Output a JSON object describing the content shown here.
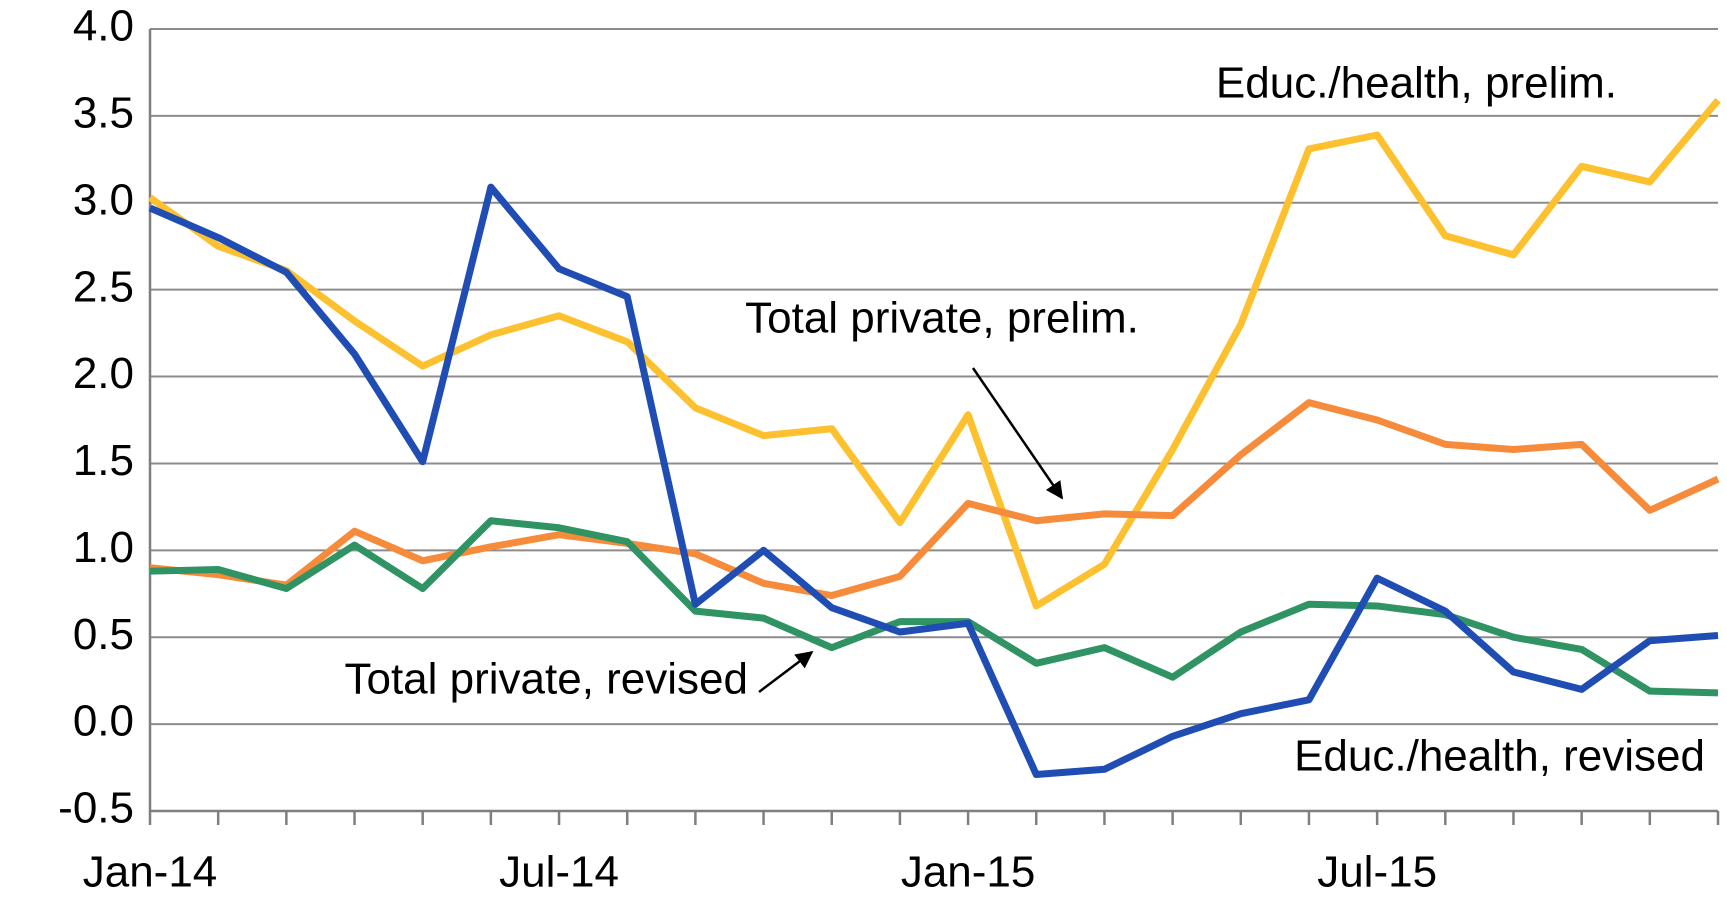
{
  "chart_data": {
    "type": "line",
    "categories": [
      "Jan-14",
      null,
      null,
      null,
      null,
      null,
      "Jul-14",
      null,
      null,
      null,
      null,
      null,
      "Jan-15",
      null,
      null,
      null,
      null,
      null,
      "Jul-15",
      null,
      null,
      null,
      null,
      null
    ],
    "series": [
      {
        "name": "Educ./health, prelim.",
        "color": "#fdc02f",
        "values": [
          3.03,
          2.75,
          2.61,
          2.32,
          2.06,
          2.24,
          2.35,
          2.2,
          1.82,
          1.66,
          1.7,
          1.16,
          1.78,
          0.68,
          0.92,
          1.58,
          2.3,
          3.31,
          3.39,
          2.81,
          2.7,
          3.21,
          3.12,
          3.59
        ]
      },
      {
        "name": "Total private, prelim.",
        "color": "#f68c3b",
        "values": [
          0.9,
          0.86,
          0.8,
          1.11,
          0.94,
          1.02,
          1.09,
          1.04,
          0.98,
          0.81,
          0.74,
          0.85,
          1.27,
          1.17,
          1.21,
          1.2,
          1.55,
          1.85,
          1.75,
          1.61,
          1.58,
          1.61,
          1.23,
          1.41
        ]
      },
      {
        "name": "Total private, revised",
        "color": "#2f9364",
        "values": [
          0.88,
          0.89,
          0.78,
          1.03,
          0.78,
          1.17,
          1.13,
          1.05,
          0.65,
          0.61,
          0.44,
          0.59,
          0.59,
          0.35,
          0.44,
          0.27,
          0.53,
          0.69,
          0.68,
          0.63,
          0.5,
          0.43,
          0.19,
          0.18
        ]
      },
      {
        "name": "Educ./health, revised",
        "color": "#1f4db3",
        "values": [
          2.97,
          2.8,
          2.6,
          2.13,
          1.51,
          3.09,
          2.62,
          2.46,
          0.69,
          1.0,
          0.67,
          0.53,
          0.58,
          -0.29,
          -0.26,
          -0.07,
          0.06,
          0.14,
          0.84,
          0.65,
          0.3,
          0.2,
          0.48,
          0.51
        ]
      }
    ],
    "ylim": [
      -0.5,
      4
    ],
    "yticks": [
      -0.5,
      {
        "value": 0,
        "label": "0.0"
      },
      0.5,
      {
        "value": 1,
        "label": "1.0"
      },
      1.5,
      {
        "value": 2,
        "label": "2.0"
      },
      2.5,
      {
        "value": 3,
        "label": "3.0"
      },
      3.5,
      {
        "value": 4,
        "label": "4.0"
      }
    ],
    "grid": true
  }
}
